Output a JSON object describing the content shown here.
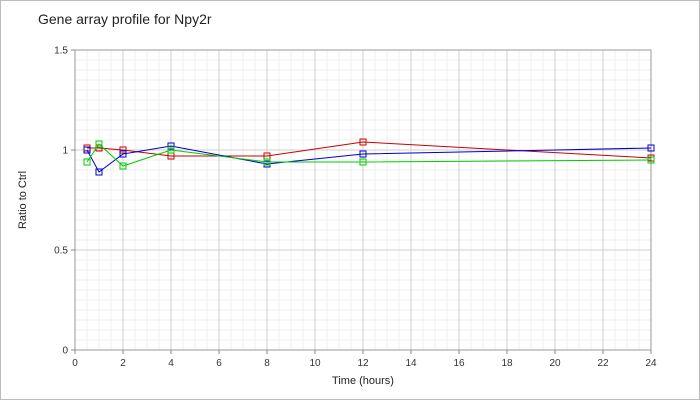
{
  "chart_data": {
    "type": "line",
    "title": "Gene array profile for Npy2r",
    "xlabel": "Time (hours)",
    "ylabel": "Ratio to Ctrl",
    "xlim": [
      0,
      24
    ],
    "ylim": [
      0,
      1.5
    ],
    "x_ticks": [
      "0",
      "2",
      "4",
      "6",
      "8",
      "10",
      "12",
      "14",
      "16",
      "18",
      "20",
      "22",
      "24"
    ],
    "y_ticks": [
      "0",
      "0.5",
      "1",
      "1.5"
    ],
    "grid": true,
    "legend": "none",
    "series": [
      {
        "color": "#cc0000",
        "marker": "open-square",
        "points": [
          [
            0.5,
            1.01
          ],
          [
            1,
            1.01
          ],
          [
            2,
            1.0
          ],
          [
            4,
            0.97
          ],
          [
            8,
            0.97
          ],
          [
            12,
            1.04
          ],
          [
            24,
            0.96
          ]
        ]
      },
      {
        "color": "#0000cc",
        "marker": "open-square",
        "points": [
          [
            0.5,
            1.0
          ],
          [
            1,
            0.89
          ],
          [
            2,
            0.98
          ],
          [
            4,
            1.02
          ],
          [
            8,
            0.93
          ],
          [
            12,
            0.98
          ],
          [
            24,
            1.01
          ]
        ]
      },
      {
        "color": "#00cc00",
        "marker": "open-square",
        "points": [
          [
            0.5,
            0.94
          ],
          [
            1,
            1.03
          ],
          [
            2,
            0.92
          ],
          [
            4,
            1.0
          ],
          [
            8,
            0.94
          ],
          [
            12,
            0.94
          ],
          [
            24,
            0.95
          ]
        ]
      }
    ]
  }
}
